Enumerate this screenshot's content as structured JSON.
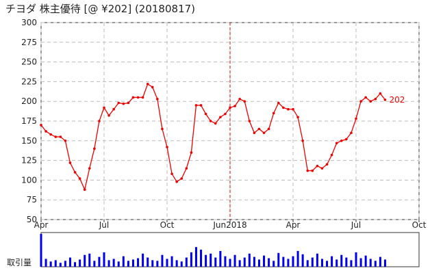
{
  "chart_data": {
    "type": "line",
    "title": "チヨダ 株主優待  [@ ¥202] (20180817)",
    "xlim": [
      0,
      78
    ],
    "xticks": [
      {
        "value": 0,
        "label": "Apr"
      },
      {
        "value": 13,
        "label": "Jul"
      },
      {
        "value": 26,
        "label": "Oct"
      },
      {
        "value": 39,
        "label": "Jun2018"
      },
      {
        "value": 52,
        "label": "Apr"
      },
      {
        "value": 65,
        "label": "Jul"
      },
      {
        "value": 78,
        "label": "Oct"
      }
    ],
    "ylim": [
      50,
      300
    ],
    "yticks": [
      50,
      75,
      100,
      125,
      150,
      175,
      200,
      225,
      250,
      275,
      300
    ],
    "grid": true,
    "divider_x": 39,
    "divider_color": "#dd0000",
    "series": [
      {
        "color": "#ee0000",
        "x": [
          0,
          1,
          2,
          3,
          4,
          5,
          6,
          7,
          8,
          9,
          10,
          11,
          12,
          13,
          14,
          15,
          16,
          17,
          18,
          19,
          20,
          21,
          22,
          23,
          24,
          25,
          26,
          27,
          28,
          29,
          30,
          31,
          32,
          33,
          34,
          35,
          36,
          37,
          38,
          39,
          40,
          41,
          42,
          43,
          44,
          45,
          46,
          47,
          48,
          49,
          50,
          51,
          52,
          53,
          54,
          55,
          56,
          57,
          58,
          59,
          60,
          61,
          62,
          63,
          64,
          65,
          66,
          67,
          68,
          69,
          70,
          71
        ],
        "values": [
          170,
          162,
          158,
          155,
          155,
          150,
          122,
          110,
          102,
          88,
          115,
          140,
          175,
          192,
          182,
          190,
          198,
          197,
          198,
          205,
          205,
          205,
          222,
          218,
          203,
          165,
          142,
          108,
          98,
          102,
          115,
          135,
          195,
          195,
          184,
          175,
          172,
          180,
          184,
          192,
          194,
          203,
          200,
          175,
          160,
          165,
          160,
          165,
          185,
          198,
          192,
          190,
          190,
          180,
          150,
          112,
          112,
          118,
          115,
          120,
          132,
          147,
          150,
          152,
          160,
          178,
          200,
          205,
          200,
          203,
          210,
          202
        ]
      }
    ],
    "volume": {
      "label": "取引量",
      "color": "#0000ee",
      "values": [
        50,
        12,
        8,
        10,
        6,
        9,
        14,
        7,
        11,
        18,
        20,
        9,
        15,
        22,
        10,
        12,
        8,
        16,
        9,
        11,
        13,
        20,
        14,
        10,
        9,
        18,
        12,
        16,
        10,
        8,
        14,
        22,
        30,
        26,
        18,
        20,
        14,
        24,
        16,
        12,
        18,
        10,
        14,
        20,
        15,
        11,
        17,
        13,
        9,
        21,
        15,
        12,
        16,
        24,
        19,
        10,
        14,
        20,
        12,
        9,
        16,
        11,
        18,
        14,
        10,
        22,
        13,
        17,
        12,
        9,
        15,
        11
      ]
    }
  }
}
